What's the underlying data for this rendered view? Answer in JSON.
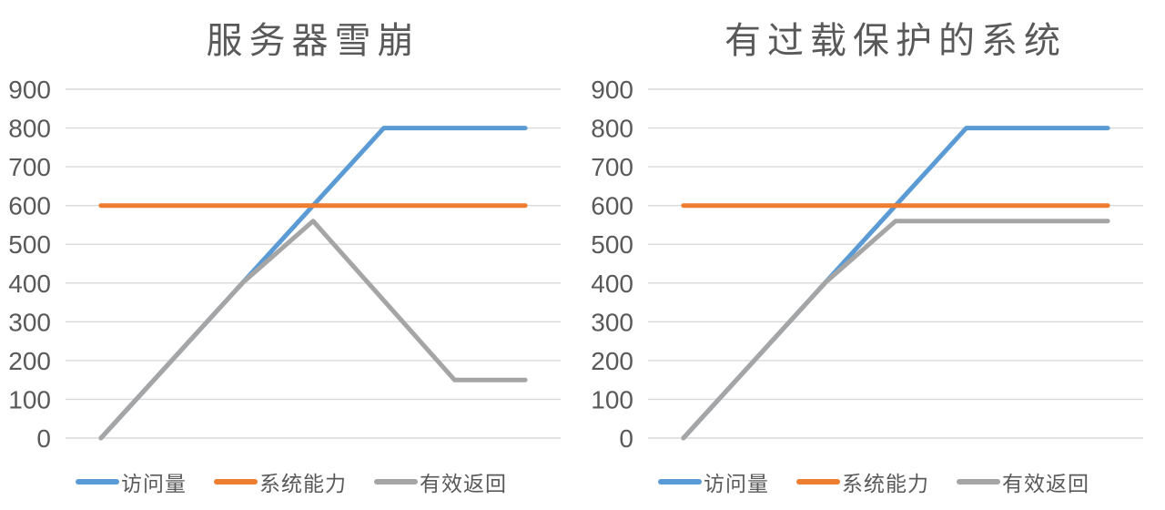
{
  "page": {
    "background": "#FFFFFF"
  },
  "colors": {
    "text": "#595959",
    "grid": "#D9D9D9",
    "series_blue": "#5B9BD5",
    "series_orange": "#ED7D31",
    "series_gray": "#A5A5A5"
  },
  "chart_data": [
    {
      "type": "line",
      "title": "服务器雪崩",
      "xlabel": "",
      "ylabel": "",
      "ylim": [
        0,
        900
      ],
      "y_ticks": [
        900,
        800,
        700,
        600,
        500,
        400,
        300,
        200,
        100,
        0
      ],
      "grid": true,
      "legend_position": "bottom",
      "series": [
        {
          "id": "visits",
          "name": "访问量",
          "color": "#5B9BD5",
          "values": [
            0,
            200,
            400,
            600,
            800,
            800,
            800
          ]
        },
        {
          "id": "capacity",
          "name": "系统能力",
          "color": "#ED7D31",
          "values": [
            600,
            600,
            600,
            600,
            600,
            600,
            600
          ]
        },
        {
          "id": "effective-return",
          "name": "有效返回",
          "color": "#A5A5A5",
          "values": [
            0,
            200,
            400,
            560,
            355,
            150,
            150
          ]
        }
      ]
    },
    {
      "type": "line",
      "title": "有过载保护的系统",
      "xlabel": "",
      "ylabel": "",
      "ylim": [
        0,
        900
      ],
      "y_ticks": [
        900,
        800,
        700,
        600,
        500,
        400,
        300,
        200,
        100,
        0
      ],
      "grid": true,
      "legend_position": "bottom",
      "series": [
        {
          "id": "visits",
          "name": "访问量",
          "color": "#5B9BD5",
          "values": [
            0,
            200,
            400,
            600,
            800,
            800,
            800
          ]
        },
        {
          "id": "capacity",
          "name": "系统能力",
          "color": "#ED7D31",
          "values": [
            600,
            600,
            600,
            600,
            600,
            600,
            600
          ]
        },
        {
          "id": "effective-return",
          "name": "有效返回",
          "color": "#A5A5A5",
          "values": [
            0,
            200,
            400,
            560,
            560,
            560,
            560
          ]
        }
      ]
    }
  ]
}
